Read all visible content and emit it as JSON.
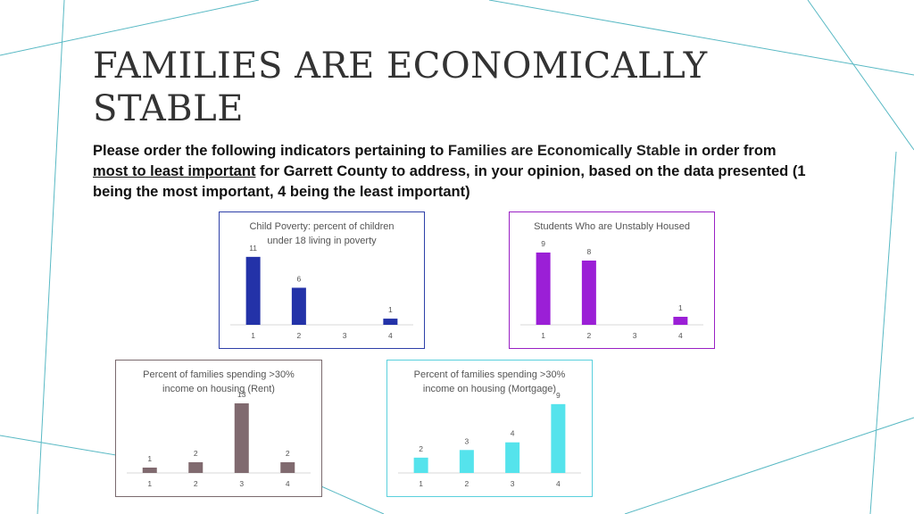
{
  "slide": {
    "title_line1": "FAMILIES ARE ECONOMICALLY",
    "title_line2": "STABLE",
    "prompt": {
      "part1": "Please order the following indicators pertaining to ",
      "highlight": "Families are Economically Stable",
      "part2": " in order from ",
      "underlined": "most to least important",
      "part3": " for Garrett County to address, in your opinion, based on the data presented (1 being the most important, 4 being the least important)"
    }
  },
  "chart_data": [
    {
      "type": "bar",
      "title_line1": "Child Poverty: percent of children",
      "title_line2": "under 18 living in poverty",
      "categories": [
        "1",
        "2",
        "3",
        "4"
      ],
      "values": [
        11,
        6,
        null,
        1
      ],
      "color": "#2332a8",
      "ylim": [
        0,
        13
      ]
    },
    {
      "type": "bar",
      "title_line1": "Students Who are Unstably Housed",
      "title_line2": "",
      "categories": [
        "1",
        "2",
        "3",
        "4"
      ],
      "values": [
        9,
        8,
        null,
        1
      ],
      "color": "#9b1fd6",
      "ylim": [
        0,
        10
      ]
    },
    {
      "type": "bar",
      "title_line1": "Percent of families spending >30%",
      "title_line2": "income on housing (Rent)",
      "categories": [
        "1",
        "2",
        "3",
        "4"
      ],
      "values": [
        1,
        2,
        13,
        2
      ],
      "color": "#806a6f",
      "ylim": [
        0,
        15
      ]
    },
    {
      "type": "bar",
      "title_line1": "Percent of families spending >30%",
      "title_line2": "income on housing (Mortgage)",
      "categories": [
        "1",
        "2",
        "3",
        "4"
      ],
      "values": [
        2,
        3,
        4,
        9
      ],
      "color": "#55e3ec",
      "ylim": [
        0,
        10.5
      ]
    }
  ]
}
